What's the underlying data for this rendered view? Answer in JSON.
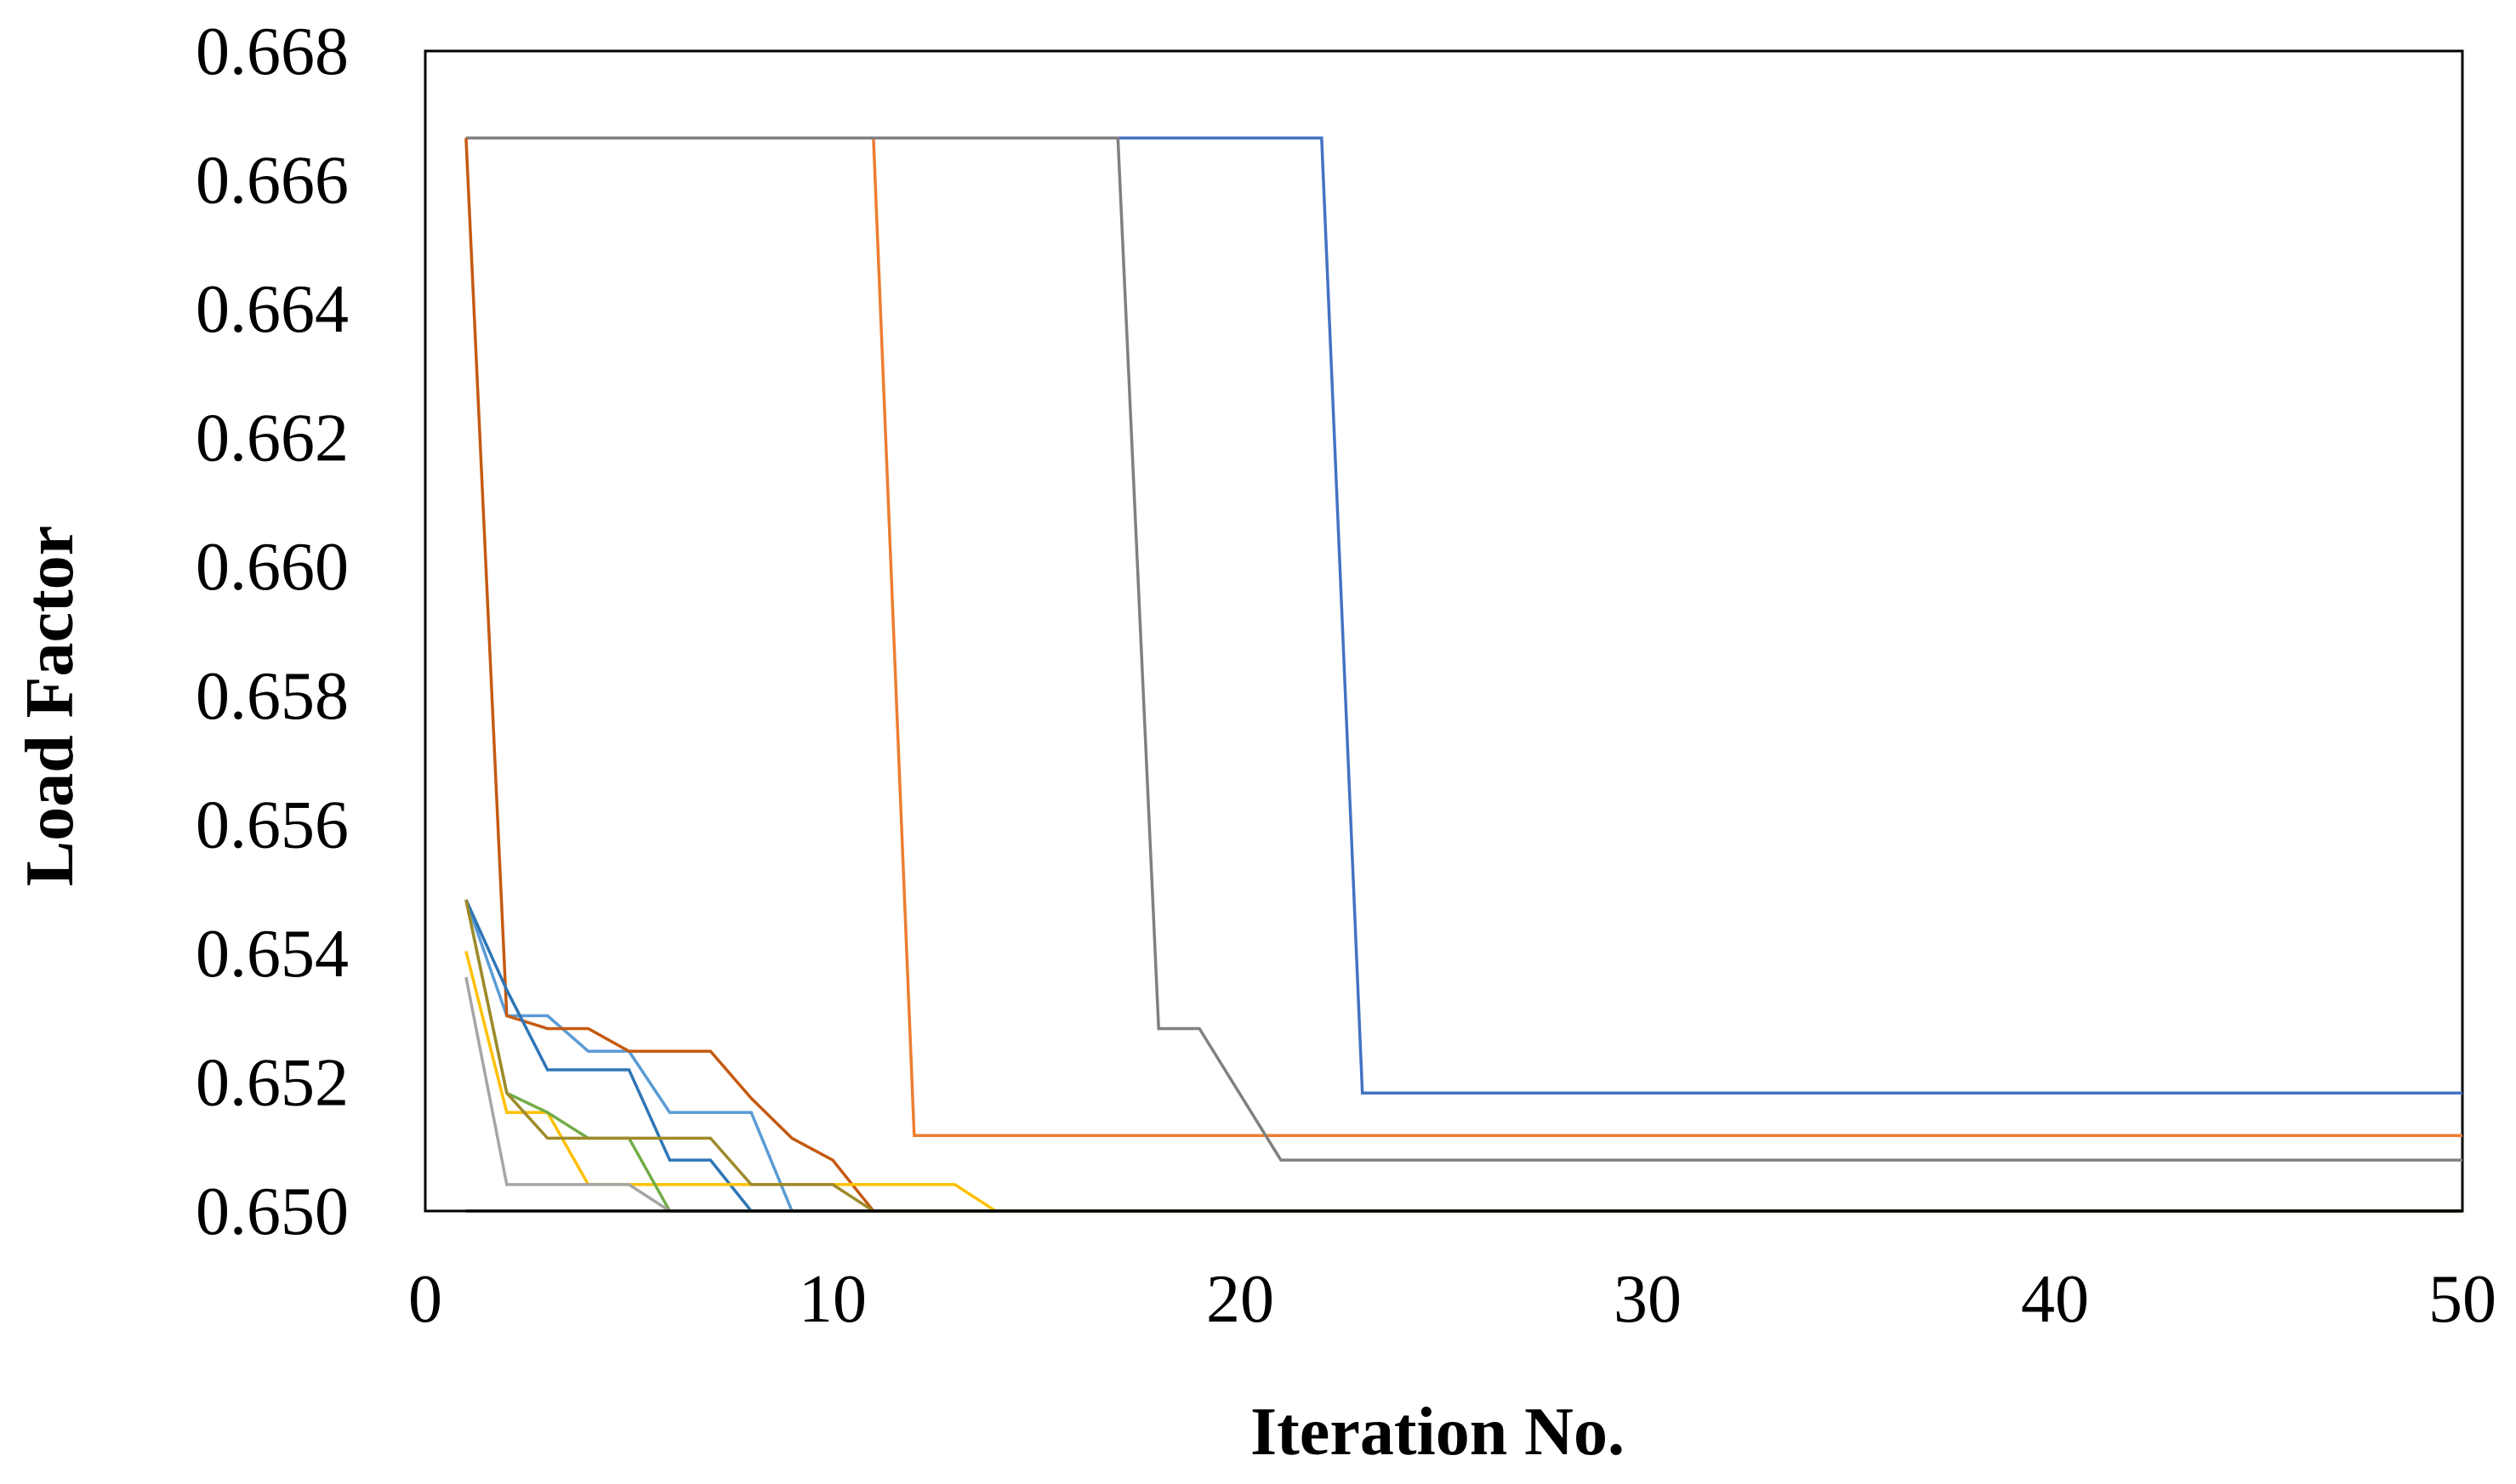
{
  "chart_data": {
    "type": "line",
    "title": "",
    "xlabel": "Iteration No.",
    "ylabel": "Load Factor",
    "xlim": [
      0,
      50
    ],
    "ylim": [
      0.65,
      0.668
    ],
    "x_ticks": [
      0,
      10,
      20,
      30,
      40,
      50
    ],
    "y_ticks": [
      0.65,
      0.652,
      0.654,
      0.656,
      0.658,
      0.66,
      0.662,
      0.664,
      0.666,
      0.668
    ],
    "x_tick_labels": [
      "0",
      "10",
      "20",
      "30",
      "40",
      "50"
    ],
    "y_tick_labels": [
      "0.650",
      "0.652",
      "0.654",
      "0.656",
      "0.658",
      "0.660",
      "0.662",
      "0.664",
      "0.666",
      "0.668"
    ],
    "grid": false,
    "legend": "none",
    "series": [
      {
        "color": "#4472C4",
        "x": [
          1,
          22,
          23,
          50
        ],
        "y": [
          0.66665,
          0.66665,
          0.65183,
          0.65183
        ]
      },
      {
        "color": "#ED7D31",
        "x": [
          1,
          2,
          11,
          12,
          50
        ],
        "y": [
          0.66665,
          0.66665,
          0.66665,
          0.65117,
          0.65117
        ]
      },
      {
        "color": "#808080",
        "x": [
          1,
          17,
          18,
          19,
          21,
          50
        ],
        "y": [
          0.66665,
          0.66665,
          0.65283,
          0.65283,
          0.65079,
          0.65079
        ]
      },
      {
        "color": "#5B9BD5",
        "x": [
          1,
          2,
          3,
          4,
          5,
          6,
          7,
          8,
          9,
          11,
          50
        ],
        "y": [
          0.65483,
          0.65303,
          0.65303,
          0.65248,
          0.65248,
          0.65153,
          0.65153,
          0.65153,
          0.65,
          0.65,
          0.65
        ]
      },
      {
        "color": "#C55A11",
        "x": [
          1,
          2,
          3,
          4,
          5,
          6,
          7,
          8,
          9,
          10,
          11,
          50
        ],
        "y": [
          0.66665,
          0.65303,
          0.65283,
          0.65283,
          0.65248,
          0.65248,
          0.65248,
          0.65175,
          0.65113,
          0.65079,
          0.65,
          0.65
        ]
      },
      {
        "color": "#2E75B6",
        "x": [
          1,
          2,
          3,
          4,
          5,
          6,
          7,
          8,
          9,
          11,
          50
        ],
        "y": [
          0.65483,
          0.65343,
          0.65219,
          0.65219,
          0.65219,
          0.65079,
          0.65079,
          0.65,
          0.65,
          0.65,
          0.65
        ]
      },
      {
        "color": "#FFC000",
        "x": [
          1,
          2,
          3,
          4,
          11,
          13,
          14,
          50
        ],
        "y": [
          0.65403,
          0.65153,
          0.65153,
          0.65041,
          0.65041,
          0.65041,
          0.65,
          0.65
        ]
      },
      {
        "color": "#70AD47",
        "x": [
          1,
          2,
          3,
          4,
          5,
          6,
          50
        ],
        "y": [
          0.65483,
          0.65183,
          0.65153,
          0.65113,
          0.65113,
          0.65,
          0.65
        ]
      },
      {
        "color": "#A5A5A5",
        "x": [
          1,
          2,
          4,
          5,
          6,
          50
        ],
        "y": [
          0.65363,
          0.65041,
          0.65041,
          0.65041,
          0.65,
          0.65
        ]
      },
      {
        "color": "#9E8A2A",
        "x": [
          1,
          2,
          3,
          4,
          5,
          7,
          8,
          10,
          11,
          50
        ],
        "y": [
          0.65483,
          0.65183,
          0.65113,
          0.65113,
          0.65113,
          0.65113,
          0.65041,
          0.65041,
          0.65,
          0.65
        ]
      },
      {
        "color": "#000000",
        "x": [
          1,
          6,
          50
        ],
        "y": [
          0.65,
          0.65,
          0.65
        ]
      }
    ]
  }
}
